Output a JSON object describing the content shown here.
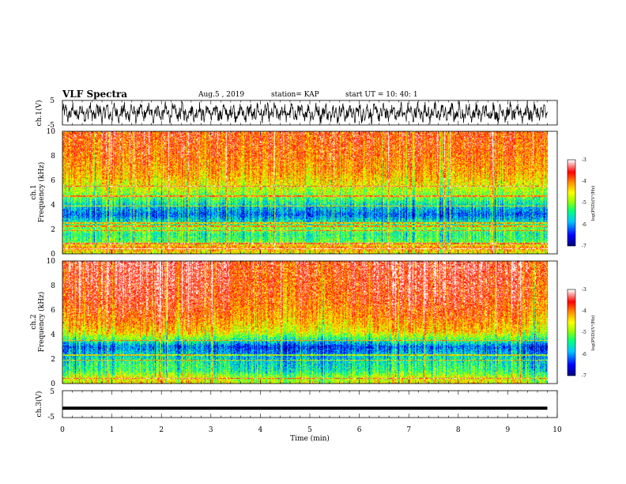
{
  "header": {
    "title": "VLF Spectra",
    "date": "Aug.5 , 2019",
    "station": "station= KAP",
    "start": "start  UT =   10: 40: 1"
  },
  "colors": {
    "background": "#ffffff",
    "axes": "#000000",
    "waveform": "#000000",
    "colormap": [
      "#000080",
      "#0000ff",
      "#00c8ff",
      "#00ff80",
      "#a0ff00",
      "#ffff00",
      "#ff9000",
      "#ff0000",
      "#ffffff"
    ]
  },
  "chart_data": [
    {
      "type": "line",
      "panel": "ch.1 waveform",
      "ylabel": "ch.1(V)",
      "yticks": [
        "5",
        "-5"
      ],
      "ylim": [
        -5,
        5
      ],
      "xlim": [
        0,
        10
      ],
      "description_of_signal": "dense oscillating voltage waveform between about -4 V and 4 V from t=0 to 9.8 min"
    },
    {
      "type": "heatmap",
      "panel": "ch.1 spectrogram",
      "ylabel": "ch.1\nFrequency  (kHz)",
      "yticks": [
        "0",
        "2",
        "4",
        "6",
        "8",
        "10"
      ],
      "ylim": [
        0,
        10
      ],
      "xlim": [
        0,
        10
      ],
      "data_extent_min": 9.8,
      "colorbar": {
        "label": "log(PSD)(V²/Hz)",
        "ticks": [
          "-3",
          "-4",
          "-5",
          "-6",
          "-7"
        ],
        "range": [
          -7,
          -3
        ]
      },
      "log_psd_profile": [
        {
          "khz": 0.0,
          "value": -4.6
        },
        {
          "khz": 0.5,
          "value": -4.0
        },
        {
          "khz": 1.0,
          "value": -5.2
        },
        {
          "khz": 1.6,
          "value": -5.4
        },
        {
          "khz": 2.0,
          "value": -5.0
        },
        {
          "khz": 2.6,
          "value": -5.6
        },
        {
          "khz": 3.2,
          "value": -6.2
        },
        {
          "khz": 3.8,
          "value": -5.8
        },
        {
          "khz": 4.5,
          "value": -5.2
        },
        {
          "khz": 5.5,
          "value": -4.6
        },
        {
          "khz": 6.5,
          "value": -4.2
        },
        {
          "khz": 8.0,
          "value": -3.9
        },
        {
          "khz": 10.0,
          "value": -3.7
        }
      ],
      "lines_khz": [
        0.4,
        0.8,
        1.9,
        2.25,
        2.5,
        3.9,
        4.7,
        5.5
      ]
    },
    {
      "type": "heatmap",
      "panel": "ch.2 spectrogram",
      "ylabel": "ch.2\nFrequency  (kHz)",
      "yticks": [
        "0",
        "2",
        "4",
        "6",
        "8",
        "10"
      ],
      "ylim": [
        0,
        10
      ],
      "xlim": [
        0,
        10
      ],
      "data_extent_min": 9.8,
      "colorbar": {
        "label": "log(PSD)(V²/Hz)",
        "ticks": [
          "-3",
          "-4",
          "-5",
          "-6",
          "-7"
        ],
        "range": [
          -7,
          -3
        ]
      },
      "log_psd_profile": [
        {
          "khz": 0.0,
          "value": -4.6
        },
        {
          "khz": 0.5,
          "value": -4.8
        },
        {
          "khz": 1.0,
          "value": -5.4
        },
        {
          "khz": 1.8,
          "value": -5.6
        },
        {
          "khz": 2.5,
          "value": -6.0
        },
        {
          "khz": 3.0,
          "value": -6.3
        },
        {
          "khz": 3.6,
          "value": -5.3
        },
        {
          "khz": 4.2,
          "value": -4.5
        },
        {
          "khz": 5.5,
          "value": -4.0
        },
        {
          "khz": 7.0,
          "value": -3.7
        },
        {
          "khz": 10.0,
          "value": -3.5
        }
      ],
      "lines_khz": [
        0.4,
        1.9,
        2.3,
        3.5
      ]
    },
    {
      "type": "line",
      "panel": "ch.3 waveform",
      "ylabel": "ch.3(V)",
      "yticks": [
        "5",
        "-5"
      ],
      "ylim": [
        -5,
        5
      ],
      "xlim": [
        0,
        10
      ],
      "series": [
        {
          "x": [
            0,
            9.8
          ],
          "y": [
            -1.5,
            -1.5
          ]
        }
      ]
    }
  ],
  "xaxis": {
    "label": "Time  (min)",
    "ticks": [
      "0",
      "1",
      "2",
      "3",
      "4",
      "5",
      "6",
      "7",
      "8",
      "9",
      "10"
    ]
  }
}
